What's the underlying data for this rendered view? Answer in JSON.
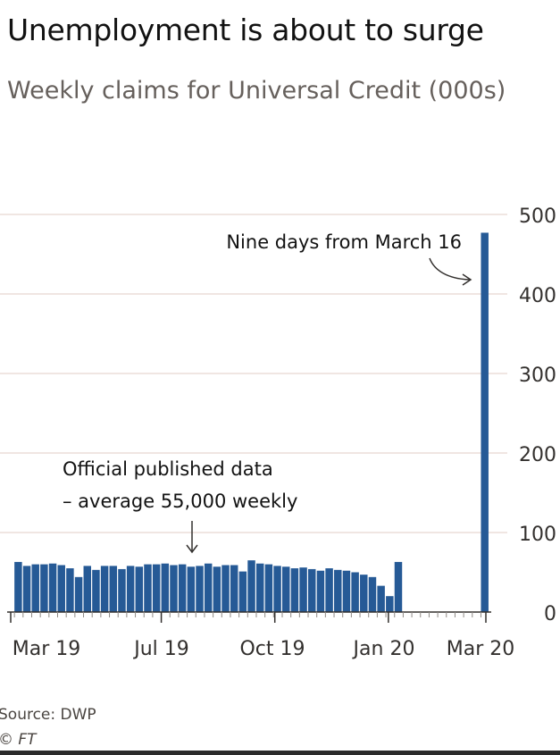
{
  "header": {
    "title": "Unemployment is about to surge",
    "subtitle": "Weekly claims for Universal Credit (000s)"
  },
  "footer": {
    "source": "Source: DWP",
    "copyright": "© FT"
  },
  "colors": {
    "bar": "#265a96",
    "grid": "#e8d7d0",
    "axis": "#33302e",
    "text": "#33302e"
  },
  "chart_data": {
    "type": "bar",
    "title": "Unemployment is about to surge",
    "subtitle": "Weekly claims for Universal Credit (000s)",
    "y_axis_position": "right",
    "ylim": [
      0,
      500
    ],
    "yticks": [
      0,
      100,
      200,
      300,
      400,
      500
    ],
    "grid": true,
    "x_tick_labels": [
      "Mar 19",
      "Jul 19",
      "Oct 19",
      "Jan 20",
      "Mar 20"
    ],
    "series": [
      {
        "weeks": [
          "2019-03-04",
          "2019-03-11",
          "2019-03-18",
          "2019-03-25",
          "2019-04-01",
          "2019-04-08",
          "2019-04-15",
          "2019-04-22",
          "2019-04-29",
          "2019-05-06",
          "2019-05-13",
          "2019-05-20",
          "2019-05-27",
          "2019-06-03",
          "2019-06-10",
          "2019-06-17",
          "2019-06-24",
          "2019-07-01",
          "2019-07-08",
          "2019-07-15",
          "2019-07-22",
          "2019-07-29",
          "2019-08-05",
          "2019-08-12",
          "2019-08-19",
          "2019-08-26",
          "2019-09-02",
          "2019-09-09",
          "2019-09-16",
          "2019-09-23",
          "2019-09-30",
          "2019-10-07",
          "2019-10-14",
          "2019-10-21",
          "2019-10-28",
          "2019-11-04",
          "2019-11-11",
          "2019-11-18",
          "2019-11-25",
          "2019-12-02",
          "2019-12-09",
          "2019-12-16",
          "2019-12-23",
          "2019-12-30",
          "2020-01-06",
          "2020-03-16"
        ],
        "values": [
          63,
          58,
          60,
          60,
          61,
          59,
          55,
          44,
          58,
          53,
          58,
          58,
          54,
          58,
          57,
          60,
          60,
          61,
          59,
          60,
          57,
          58,
          61,
          57,
          59,
          59,
          51,
          65,
          61,
          60,
          58,
          57,
          55,
          56,
          54,
          52,
          55,
          53,
          52,
          50,
          47,
          44,
          33,
          20,
          63,
          477
        ]
      }
    ],
    "annotations": [
      {
        "text": "Nine days from March 16",
        "target_week": "2020-03-16"
      },
      {
        "text_lines": [
          "Official published data",
          "– average 55,000 weekly"
        ],
        "target_week": "2019-08-05"
      }
    ]
  }
}
